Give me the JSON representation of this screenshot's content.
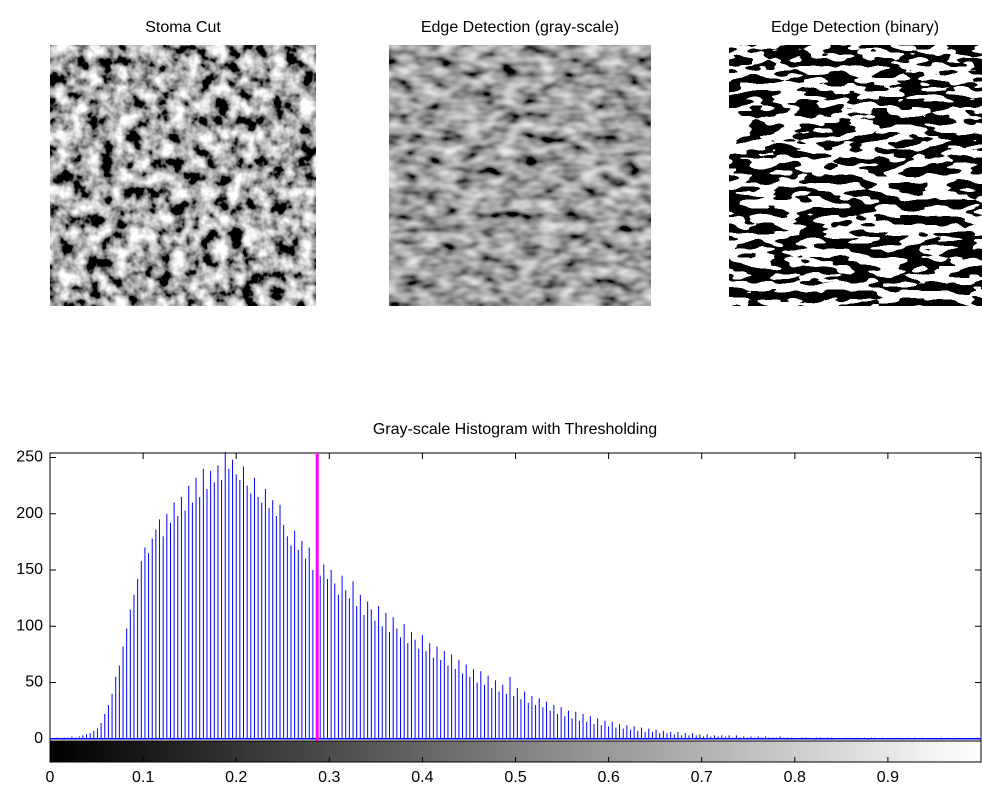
{
  "images": [
    {
      "title": "Stoma Cut"
    },
    {
      "title": "Edge Detection (gray-scale)"
    },
    {
      "title": "Edge Detection (binary)"
    }
  ],
  "chart_data": {
    "type": "stem",
    "title": "Gray-scale Histogram with Thresholding",
    "color": "#0000ff",
    "threshold": 0.287,
    "threshold_color": "#ff00ff",
    "xlim": [
      0,
      1
    ],
    "xticks": [
      0,
      0.1,
      0.2,
      0.3,
      0.4,
      0.5,
      0.6,
      0.7,
      0.8,
      0.9
    ],
    "ylim": [
      -2,
      254
    ],
    "yticks": [
      0,
      50,
      100,
      150,
      200,
      250
    ],
    "values": [
      1,
      0,
      1,
      0,
      1,
      1,
      2,
      1,
      2,
      3,
      4,
      5,
      7,
      9,
      14,
      22,
      30,
      40,
      55,
      65,
      82,
      98,
      115,
      128,
      142,
      158,
      170,
      165,
      178,
      186,
      195,
      180,
      200,
      192,
      210,
      198,
      215,
      203,
      225,
      210,
      232,
      215,
      240,
      222,
      238,
      228,
      243,
      230,
      255,
      240,
      248,
      235,
      230,
      242,
      225,
      218,
      232,
      215,
      210,
      222,
      205,
      212,
      198,
      208,
      190,
      180,
      172,
      185,
      168,
      176,
      160,
      170,
      150,
      162,
      145,
      155,
      142,
      150,
      138,
      128,
      145,
      132,
      125,
      140,
      118,
      128,
      110,
      122,
      115,
      105,
      118,
      100,
      112,
      95,
      108,
      98,
      90,
      102,
      85,
      95,
      88,
      80,
      92,
      78,
      85,
      72,
      82,
      70,
      78,
      65,
      75,
      62,
      70,
      58,
      66,
      55,
      62,
      50,
      60,
      48,
      56,
      45,
      52,
      42,
      48,
      40,
      55,
      38,
      45,
      35,
      42,
      32,
      38,
      30,
      36,
      28,
      33,
      25,
      30,
      22,
      28,
      20,
      25,
      18,
      24,
      16,
      22,
      15,
      20,
      13,
      18,
      12,
      16,
      11,
      15,
      10,
      13,
      9,
      12,
      8,
      11,
      7,
      10,
      6,
      9,
      6,
      8,
      5,
      7,
      5,
      6,
      4,
      6,
      3,
      5,
      3,
      5,
      3,
      4,
      2,
      4,
      2,
      3,
      2,
      3,
      2,
      3,
      1,
      3,
      1,
      2,
      1,
      2,
      1,
      2,
      1,
      2,
      1,
      1,
      1,
      2,
      1,
      1,
      1,
      1,
      0,
      1,
      1,
      1,
      0,
      1,
      1,
      0,
      1,
      1,
      0,
      1,
      0,
      1,
      1,
      0,
      1,
      0,
      1,
      0,
      1,
      1,
      0,
      1,
      0,
      1,
      0,
      1,
      0,
      0,
      1,
      0,
      1,
      0,
      1,
      0,
      1,
      0,
      0,
      1,
      0,
      1,
      0,
      0,
      1,
      0,
      1,
      0,
      0,
      1,
      2
    ]
  }
}
